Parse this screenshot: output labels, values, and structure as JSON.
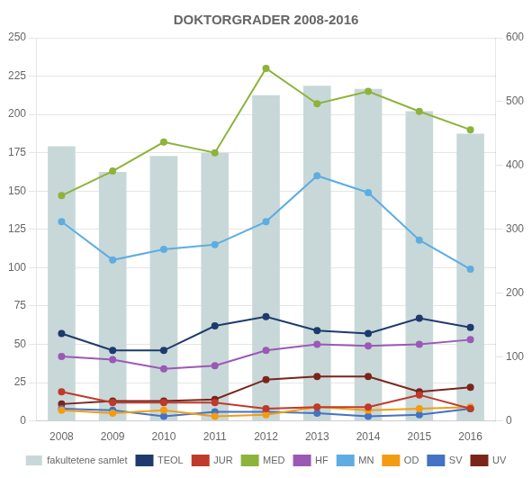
{
  "chart_data": {
    "type": "bar",
    "title": "DOKTORGRADER 2008-2016",
    "categories": [
      "2008",
      "2009",
      "2010",
      "2011",
      "2012",
      "2013",
      "2014",
      "2015",
      "2016"
    ],
    "series": [
      {
        "name": "fakultetene samlet",
        "type": "bar",
        "axis": "y2",
        "color": "#c8d8d8",
        "values": [
          430,
          390,
          415,
          420,
          510,
          525,
          520,
          485,
          450
        ]
      },
      {
        "name": "TEOL",
        "type": "line",
        "marker": "circle",
        "color": "#1f3a6e",
        "values": [
          57,
          46,
          46,
          62,
          68,
          59,
          57,
          67,
          61
        ]
      },
      {
        "name": "JUR",
        "type": "line",
        "marker": "circle",
        "color": "#c0392b",
        "values": [
          19,
          12,
          12,
          12,
          8,
          9,
          9,
          17,
          8
        ]
      },
      {
        "name": "MED",
        "type": "line",
        "marker": "circle",
        "color": "#8db33a",
        "values": [
          147,
          163,
          182,
          175,
          230,
          207,
          215,
          202,
          190
        ]
      },
      {
        "name": "HF",
        "type": "line",
        "marker": "circle",
        "color": "#9b59b6",
        "values": [
          42,
          40,
          34,
          36,
          46,
          50,
          49,
          50,
          53
        ]
      },
      {
        "name": "MN",
        "type": "line",
        "marker": "circle",
        "color": "#5dade2",
        "values": [
          130,
          105,
          112,
          115,
          130,
          160,
          149,
          118,
          99
        ]
      },
      {
        "name": "OD",
        "type": "line",
        "marker": "circle",
        "color": "#f39c12",
        "values": [
          7,
          5,
          7,
          3,
          4,
          9,
          7,
          8,
          9
        ]
      },
      {
        "name": "SV",
        "type": "line",
        "marker": "circle",
        "color": "#4472c4",
        "values": [
          8,
          7,
          3,
          6,
          6,
          5,
          3,
          4,
          8
        ]
      },
      {
        "name": "UV",
        "type": "line",
        "marker": "circle",
        "color": "#7b241c",
        "values": [
          11,
          13,
          13,
          14,
          27,
          29,
          29,
          19,
          22
        ]
      }
    ],
    "ylim": [
      0,
      250
    ],
    "yticks": [
      0,
      25,
      50,
      75,
      100,
      125,
      150,
      175,
      200,
      225,
      250
    ],
    "y2lim": [
      0,
      600
    ],
    "y2ticks": [
      0,
      100,
      200,
      300,
      400,
      500,
      600
    ],
    "grid": true,
    "legend": "bottom"
  }
}
